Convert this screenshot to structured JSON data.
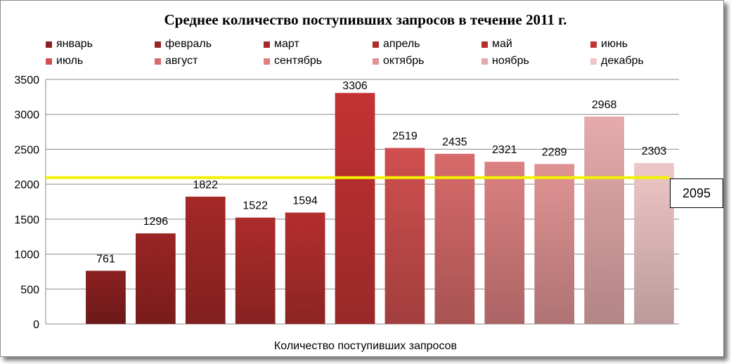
{
  "chart_data": {
    "type": "bar",
    "title": "Среднее количество поступивших запросов в течение 2011 г.",
    "xlabel": "Количество поступивших запросов",
    "ylabel": "",
    "ylim": [
      0,
      3500
    ],
    "yticks": [
      0,
      500,
      1000,
      1500,
      2000,
      2500,
      3000,
      3500
    ],
    "grid": true,
    "legend_position": "top",
    "series": [
      {
        "name": "январь",
        "values": [
          761
        ],
        "color": "#8b2020"
      },
      {
        "name": "февраль",
        "values": [
          1296
        ],
        "color": "#9a2424"
      },
      {
        "name": "март",
        "values": [
          1822
        ],
        "color": "#a52828"
      },
      {
        "name": "апрель",
        "values": [
          1522
        ],
        "color": "#ad2b2b"
      },
      {
        "name": "май",
        "values": [
          1594
        ],
        "color": "#b42e2e"
      },
      {
        "name": "июнь",
        "values": [
          3306
        ],
        "color": "#c43333"
      },
      {
        "name": "июль",
        "values": [
          2519
        ],
        "color": "#d04f4f"
      },
      {
        "name": "август",
        "values": [
          2435
        ],
        "color": "#d76a6a"
      },
      {
        "name": "сентябрь",
        "values": [
          2321
        ],
        "color": "#dc8080"
      },
      {
        "name": "октябрь",
        "values": [
          2289
        ],
        "color": "#e09393"
      },
      {
        "name": "ноябрь",
        "values": [
          2968
        ],
        "color": "#e6aaaa"
      },
      {
        "name": "декабрь",
        "values": [
          2303
        ],
        "color": "#eec6c6"
      }
    ],
    "reference_line": {
      "value": 2095,
      "label": "2095",
      "color": "#f2f200"
    }
  }
}
